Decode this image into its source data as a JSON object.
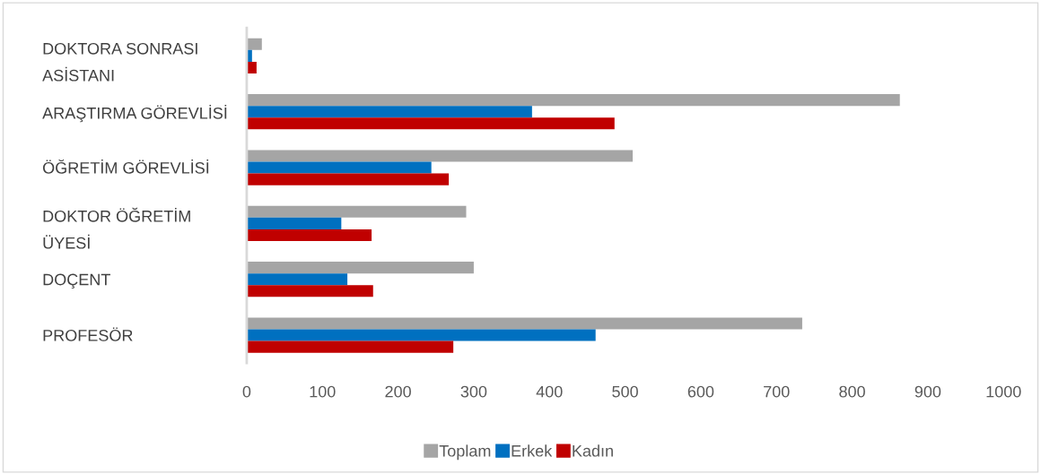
{
  "chart_data": {
    "type": "bar",
    "orientation": "horizontal",
    "categories": [
      "DOKTORA SONRASI ASİSTANI",
      "ARAŞTIRMA GÖREVLİSİ",
      "ÖĞRETİM GÖREVLİSİ",
      "DOKTOR ÖĞRETİM ÜYESİ",
      "DOÇENT",
      "PROFESÖR"
    ],
    "series": [
      {
        "name": "Toplam",
        "color": "#a5a5a5",
        "values": [
          20,
          863,
          510,
          290,
          300,
          734
        ]
      },
      {
        "name": "Erkek",
        "color": "#0070c0",
        "values": [
          7,
          377,
          244,
          125,
          133,
          461
        ]
      },
      {
        "name": "Kadın",
        "color": "#c00000",
        "values": [
          13,
          486,
          267,
          165,
          167,
          273
        ]
      }
    ],
    "xlim": [
      0,
      1000
    ],
    "xticks": [
      0,
      100,
      200,
      300,
      400,
      500,
      600,
      700,
      800,
      900,
      1000
    ],
    "grid": false,
    "legend": "bottom"
  }
}
